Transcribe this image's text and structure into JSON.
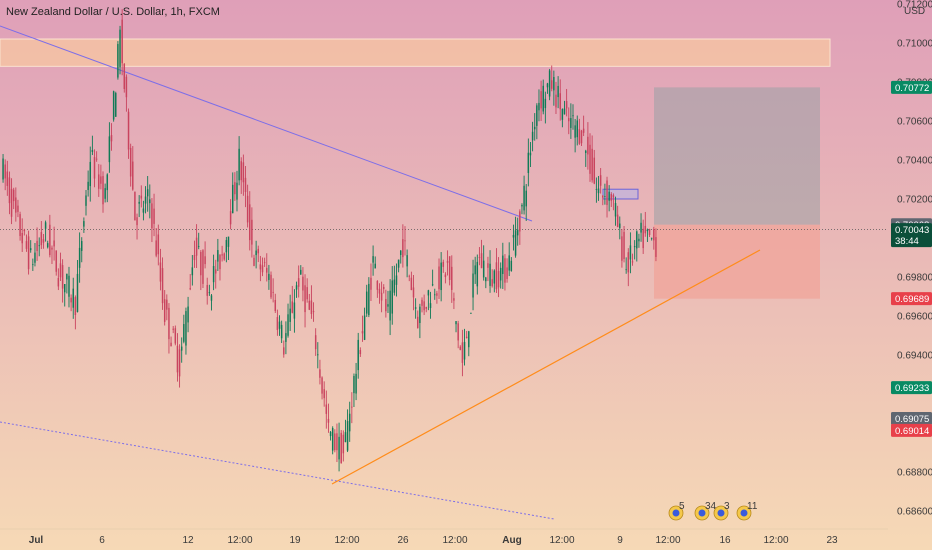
{
  "header": {
    "symbol_title": "New Zealand Dollar / U.S. Dollar, 1h, FXCM",
    "currency": "USD"
  },
  "colors": {
    "bg_top": "#df9fb8",
    "bg_bottom": "#f6d9b6",
    "up": "#0f7a56",
    "down": "#c9435e",
    "target_zone": "#9aa0a5",
    "stop_zone": "#f0a49a",
    "supply_zone": "#f4c3a3",
    "trendline_up": "#ff8c1a",
    "trendline_down": "#7d6ee8",
    "green_tag": "#088a63",
    "red_tag": "#e8404a",
    "grey_tag": "#5f6670",
    "dark_green_tag": "#0b4f3a"
  },
  "chart_data": {
    "type": "candlestick",
    "ylim": [
      0.6858,
      0.7122
    ],
    "y_ticks": [
      "0.71200",
      "0.71000",
      "0.70800",
      "0.70600",
      "0.70400",
      "0.70200",
      "0.69800",
      "0.69600",
      "0.69400",
      "0.68800",
      "0.68600"
    ],
    "x_ticks": [
      "Jul",
      "6",
      "12",
      "12:00",
      "19",
      "12:00",
      "26",
      "12:00",
      "Aug",
      "12:00",
      "9",
      "12:00",
      "16",
      "12:00",
      "23"
    ],
    "price_tags": [
      {
        "label": "0.70772",
        "value": 0.70772,
        "kind": "green"
      },
      {
        "label": "0.70068",
        "value": 0.70068,
        "kind": "grey"
      },
      {
        "label": "0.70043",
        "value": 0.70043,
        "kind": "dark",
        "sub": "38:44"
      },
      {
        "label": "0.69689",
        "value": 0.69689,
        "kind": "red"
      },
      {
        "label": "0.69233",
        "value": 0.69233,
        "kind": "green"
      },
      {
        "label": "0.69075",
        "value": 0.69075,
        "kind": "grey"
      },
      {
        "label": "0.69014",
        "value": 0.69014,
        "kind": "red"
      }
    ],
    "current_price": 0.70043,
    "position": {
      "entry": 0.70068,
      "target": 0.70772,
      "stop": 0.69689
    },
    "supply_zone": [
      0.7088,
      0.7102
    ],
    "events": [
      "5",
      "34",
      "3",
      "11"
    ],
    "series": [
      {
        "name": "",
        "anchors": [
          [
            0.7038,
            0.701
          ],
          [
            0.701,
            0.6988
          ],
          [
            0.6988,
            0.7002
          ],
          [
            0.7002,
            0.698
          ],
          [
            0.698,
            0.6968
          ],
          [
            0.6968,
            0.7042
          ],
          [
            0.7042,
            0.7022
          ],
          [
            0.7022,
            0.7104
          ],
          [
            0.7104,
            0.7012
          ],
          [
            0.7012,
            0.702
          ],
          [
            0.702,
            0.6962
          ],
          [
            0.6962,
            0.6935
          ],
          [
            0.6935,
            0.6995
          ],
          [
            0.6995,
            0.6975
          ],
          [
            0.6975,
            0.6995
          ],
          [
            0.6995,
            0.704
          ],
          [
            0.704,
            0.699
          ],
          [
            0.699,
            0.698
          ],
          [
            0.698,
            0.6945
          ],
          [
            0.6945,
            0.698
          ],
          [
            0.698,
            0.6955
          ],
          [
            0.6955,
            0.69
          ],
          [
            0.69,
            0.689
          ],
          [
            0.689,
            0.694
          ],
          [
            0.694,
            0.6988
          ],
          [
            0.6988,
            0.696
          ],
          [
            0.696,
            0.6998
          ],
          [
            0.6998,
            0.696
          ],
          [
            0.696,
            0.6975
          ],
          [
            0.6975,
            0.6985
          ],
          [
            0.6985,
            0.6935
          ],
          [
            0.6935,
            0.699
          ],
          [
            0.699,
            0.698
          ],
          [
            0.698,
            0.6985
          ],
          [
            0.6985,
            0.7015
          ],
          [
            0.7015,
            0.707
          ],
          [
            0.707,
            0.708
          ],
          [
            0.708,
            0.706
          ],
          [
            0.706,
            0.7055
          ],
          [
            0.7055,
            0.7025
          ],
          [
            0.7025,
            0.7022
          ],
          [
            0.7022,
            0.6985
          ],
          [
            0.6985,
            0.7
          ],
          [
            0.7,
            0.6998
          ]
        ]
      }
    ]
  }
}
